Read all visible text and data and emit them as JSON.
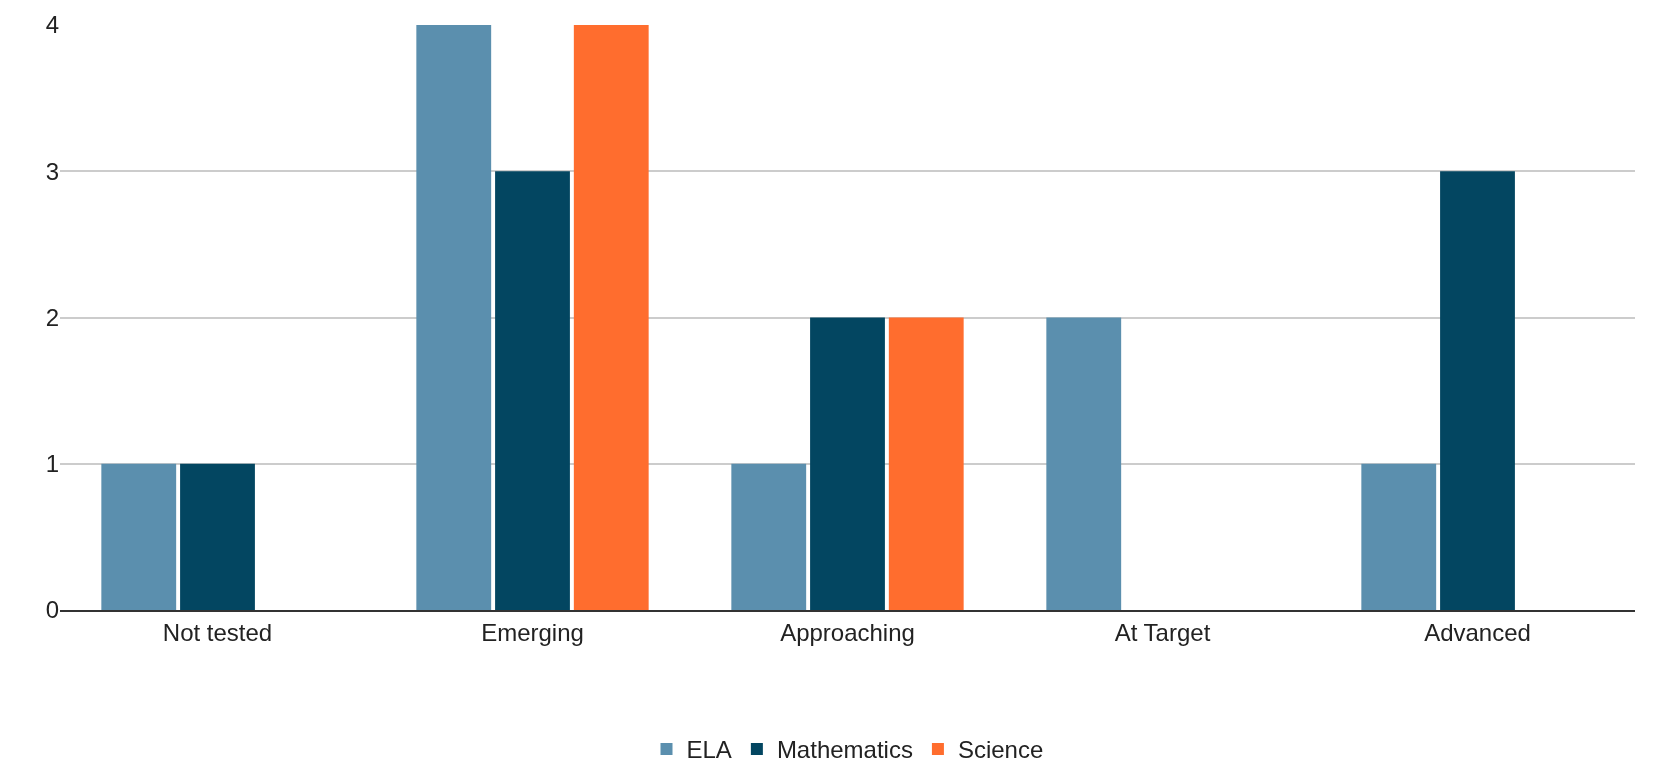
{
  "chart_data": {
    "type": "bar",
    "categories": [
      "Not tested",
      "Emerging",
      "Approaching",
      "At Target",
      "Advanced"
    ],
    "series": [
      {
        "name": "ELA",
        "color": "#5b8fae",
        "values": [
          1,
          4,
          1,
          2,
          1
        ]
      },
      {
        "name": "Mathematics",
        "color": "#034661",
        "values": [
          1,
          3,
          2,
          0,
          3
        ]
      },
      {
        "name": "Science",
        "color": "#ff6d2e",
        "values": [
          0,
          4,
          2,
          0,
          0
        ]
      }
    ],
    "ylim": [
      0,
      4
    ],
    "yticks": [
      0,
      1,
      2,
      3,
      4
    ],
    "grid": "y",
    "legend": "bottom"
  }
}
